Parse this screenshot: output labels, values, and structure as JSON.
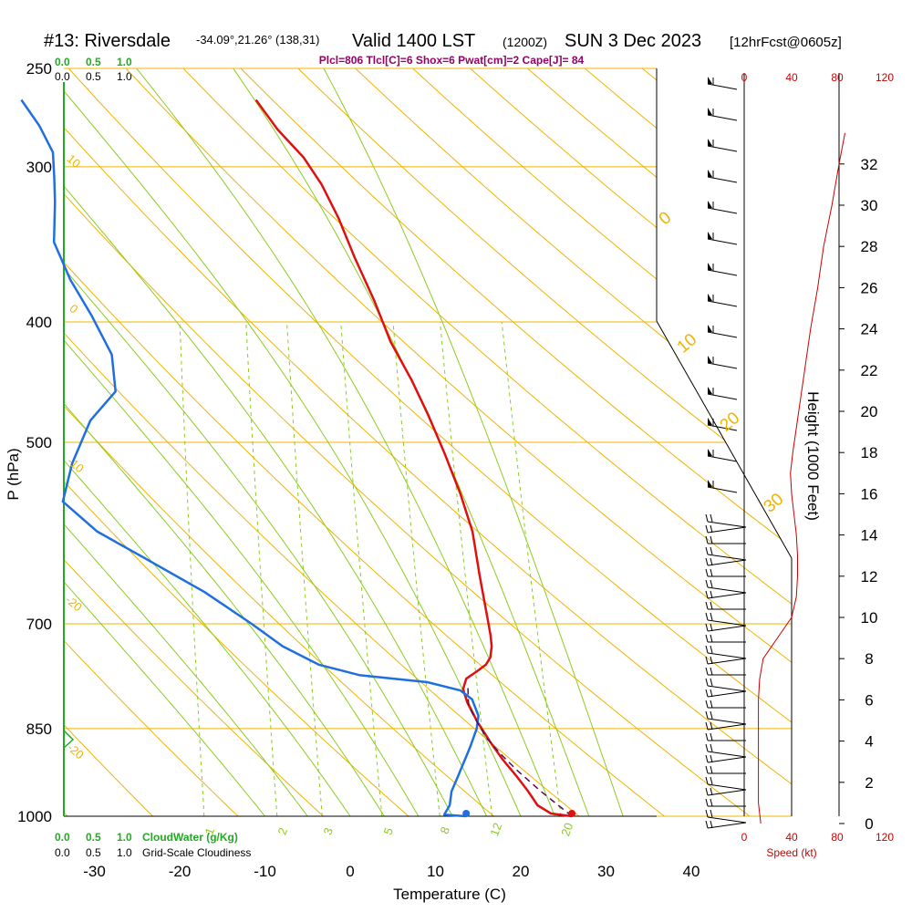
{
  "header": {
    "station": "#13: Riversdale",
    "coords": "-34.09°,21.26° (138,31)",
    "valid": "Valid 1400 LST",
    "zulu": "(1200Z)",
    "date": "SUN 3 Dec 2023",
    "fcst": "[12hrFcst@0605z]",
    "indices": "Plcl=806 Tlcl[C]=6 Shox=6 Pwat[cm]=2 Cape[J]= 84"
  },
  "scales": {
    "cloudwater_top": [
      "0.0",
      "0.5",
      "1.0"
    ],
    "cloudiness_top": [
      "0.0",
      "0.5",
      "1.0"
    ],
    "cloudwater_bottom": [
      "0.0",
      "0.5",
      "1.0"
    ],
    "cloudwater_label": "CloudWater (g/Kg)",
    "cloudiness_bottom": [
      "0.0",
      "0.5",
      "1.0"
    ],
    "cloudiness_label": "Grid-Scale Cloudiness",
    "speed_ticks": [
      "0",
      "40",
      "80",
      "120"
    ],
    "speed_label": "Speed (kt)"
  },
  "colors": {
    "isobar": "#f0b400",
    "dry_adiabat": "#f0b400",
    "moist_adiabat": "#8ccc20",
    "mixing_ratio": "#8ccc20",
    "temperature": "#e01010",
    "dewpoint": "#1f6fe0",
    "parcel": "#5a0a5a",
    "cloudwater": "#22aa22",
    "speed": "#cc0000",
    "indices": "#990066"
  },
  "chart_data": {
    "type": "line",
    "xlabel": "Temperature (C)",
    "ylabel": "P (hPa)",
    "y2label": "Height (1000 Feet)",
    "x_ticks": [
      -30,
      -20,
      -10,
      0,
      10,
      20,
      30,
      40
    ],
    "p_ticks": [
      250,
      300,
      400,
      500,
      700,
      850,
      1000
    ],
    "height_ticks": [
      0,
      2,
      4,
      6,
      8,
      10,
      12,
      14,
      16,
      18,
      20,
      22,
      24,
      26,
      28,
      30,
      32
    ],
    "dry_adiabat_labels": [
      "-20",
      "-10",
      "0",
      "10",
      "20",
      "30"
    ],
    "moist_adiabat_labels": [
      "0",
      "10",
      "20",
      "30"
    ],
    "mixing_ratio_labels": [
      "1",
      "2",
      "3",
      "5",
      "8",
      "12",
      "20"
    ],
    "series": [
      {
        "name": "temperature",
        "points": [
          [
            26.0,
            1000
          ],
          [
            23.5,
            995
          ],
          [
            21.8,
            980
          ],
          [
            20.5,
            955
          ],
          [
            19.0,
            930
          ],
          [
            17.0,
            900
          ],
          [
            15.5,
            875
          ],
          [
            13.5,
            840
          ],
          [
            12.0,
            810
          ],
          [
            11.3,
            790
          ],
          [
            11.5,
            775
          ],
          [
            12.6,
            765
          ],
          [
            13.6,
            755
          ],
          [
            14.0,
            745
          ],
          [
            14.0,
            730
          ],
          [
            13.7,
            715
          ],
          [
            13.0,
            690
          ],
          [
            11.5,
            640
          ],
          [
            10.0,
            590
          ],
          [
            8.0,
            550
          ],
          [
            5.5,
            510
          ],
          [
            3.0,
            475
          ],
          [
            0.5,
            445
          ],
          [
            -2.5,
            415
          ],
          [
            -5.0,
            385
          ],
          [
            -8.0,
            355
          ],
          [
            -10.5,
            330
          ],
          [
            -13.0,
            310
          ],
          [
            -15.5,
            295
          ],
          [
            -19.0,
            280
          ],
          [
            -22.0,
            265
          ]
        ]
      },
      {
        "name": "dewpoint",
        "points": [
          [
            13.6,
            1000
          ],
          [
            11.0,
            997
          ],
          [
            11.5,
            980
          ],
          [
            11.5,
            955
          ],
          [
            12.0,
            930
          ],
          [
            13.0,
            880
          ],
          [
            13.5,
            850
          ],
          [
            13.5,
            830
          ],
          [
            12.5,
            805
          ],
          [
            11.0,
            792
          ],
          [
            7.0,
            780
          ],
          [
            -1.0,
            770
          ],
          [
            -6.0,
            755
          ],
          [
            -10.5,
            730
          ],
          [
            -14.5,
            700
          ],
          [
            -20.5,
            660
          ],
          [
            -28.0,
            620
          ],
          [
            -34.0,
            590
          ],
          [
            -38.5,
            558
          ],
          [
            -38.0,
            520
          ],
          [
            -36.5,
            480
          ],
          [
            -34.0,
            455
          ],
          [
            -35.0,
            425
          ],
          [
            -38.0,
            395
          ],
          [
            -41.0,
            370
          ],
          [
            -43.5,
            345
          ],
          [
            -44.0,
            320
          ],
          [
            -44.5,
            305
          ],
          [
            -45.0,
            292
          ],
          [
            -47.0,
            278
          ],
          [
            -49.5,
            265
          ]
        ]
      },
      {
        "name": "parcel",
        "points": [
          [
            26.0,
            1000
          ],
          [
            22.0,
            955
          ],
          [
            19.0,
            920
          ],
          [
            17.0,
            895
          ],
          [
            15.0,
            868
          ],
          [
            13.7,
            845
          ],
          [
            12.2,
            815
          ],
          [
            11.8,
            785
          ]
        ]
      }
    ],
    "surface_points": {
      "temperature": [
        26.0,
        1000
      ],
      "dewpoint": [
        13.6,
        1000
      ]
    },
    "wind_speed_kt": [
      [
        0,
        14
      ],
      [
        1,
        12
      ],
      [
        2,
        12
      ],
      [
        3,
        12
      ],
      [
        4,
        12
      ],
      [
        5,
        12
      ],
      [
        6,
        12
      ],
      [
        7,
        13
      ],
      [
        8,
        16
      ],
      [
        9,
        28
      ],
      [
        10,
        40
      ],
      [
        11,
        44
      ],
      [
        12,
        45
      ],
      [
        13,
        45
      ],
      [
        14,
        44
      ],
      [
        15,
        42
      ],
      [
        16,
        40
      ],
      [
        17,
        39
      ],
      [
        18,
        41
      ],
      [
        20,
        46
      ],
      [
        22,
        51
      ],
      [
        24,
        56
      ],
      [
        26,
        62
      ],
      [
        28,
        67
      ],
      [
        30,
        74
      ],
      [
        32,
        80
      ],
      [
        33.5,
        85
      ]
    ]
  }
}
